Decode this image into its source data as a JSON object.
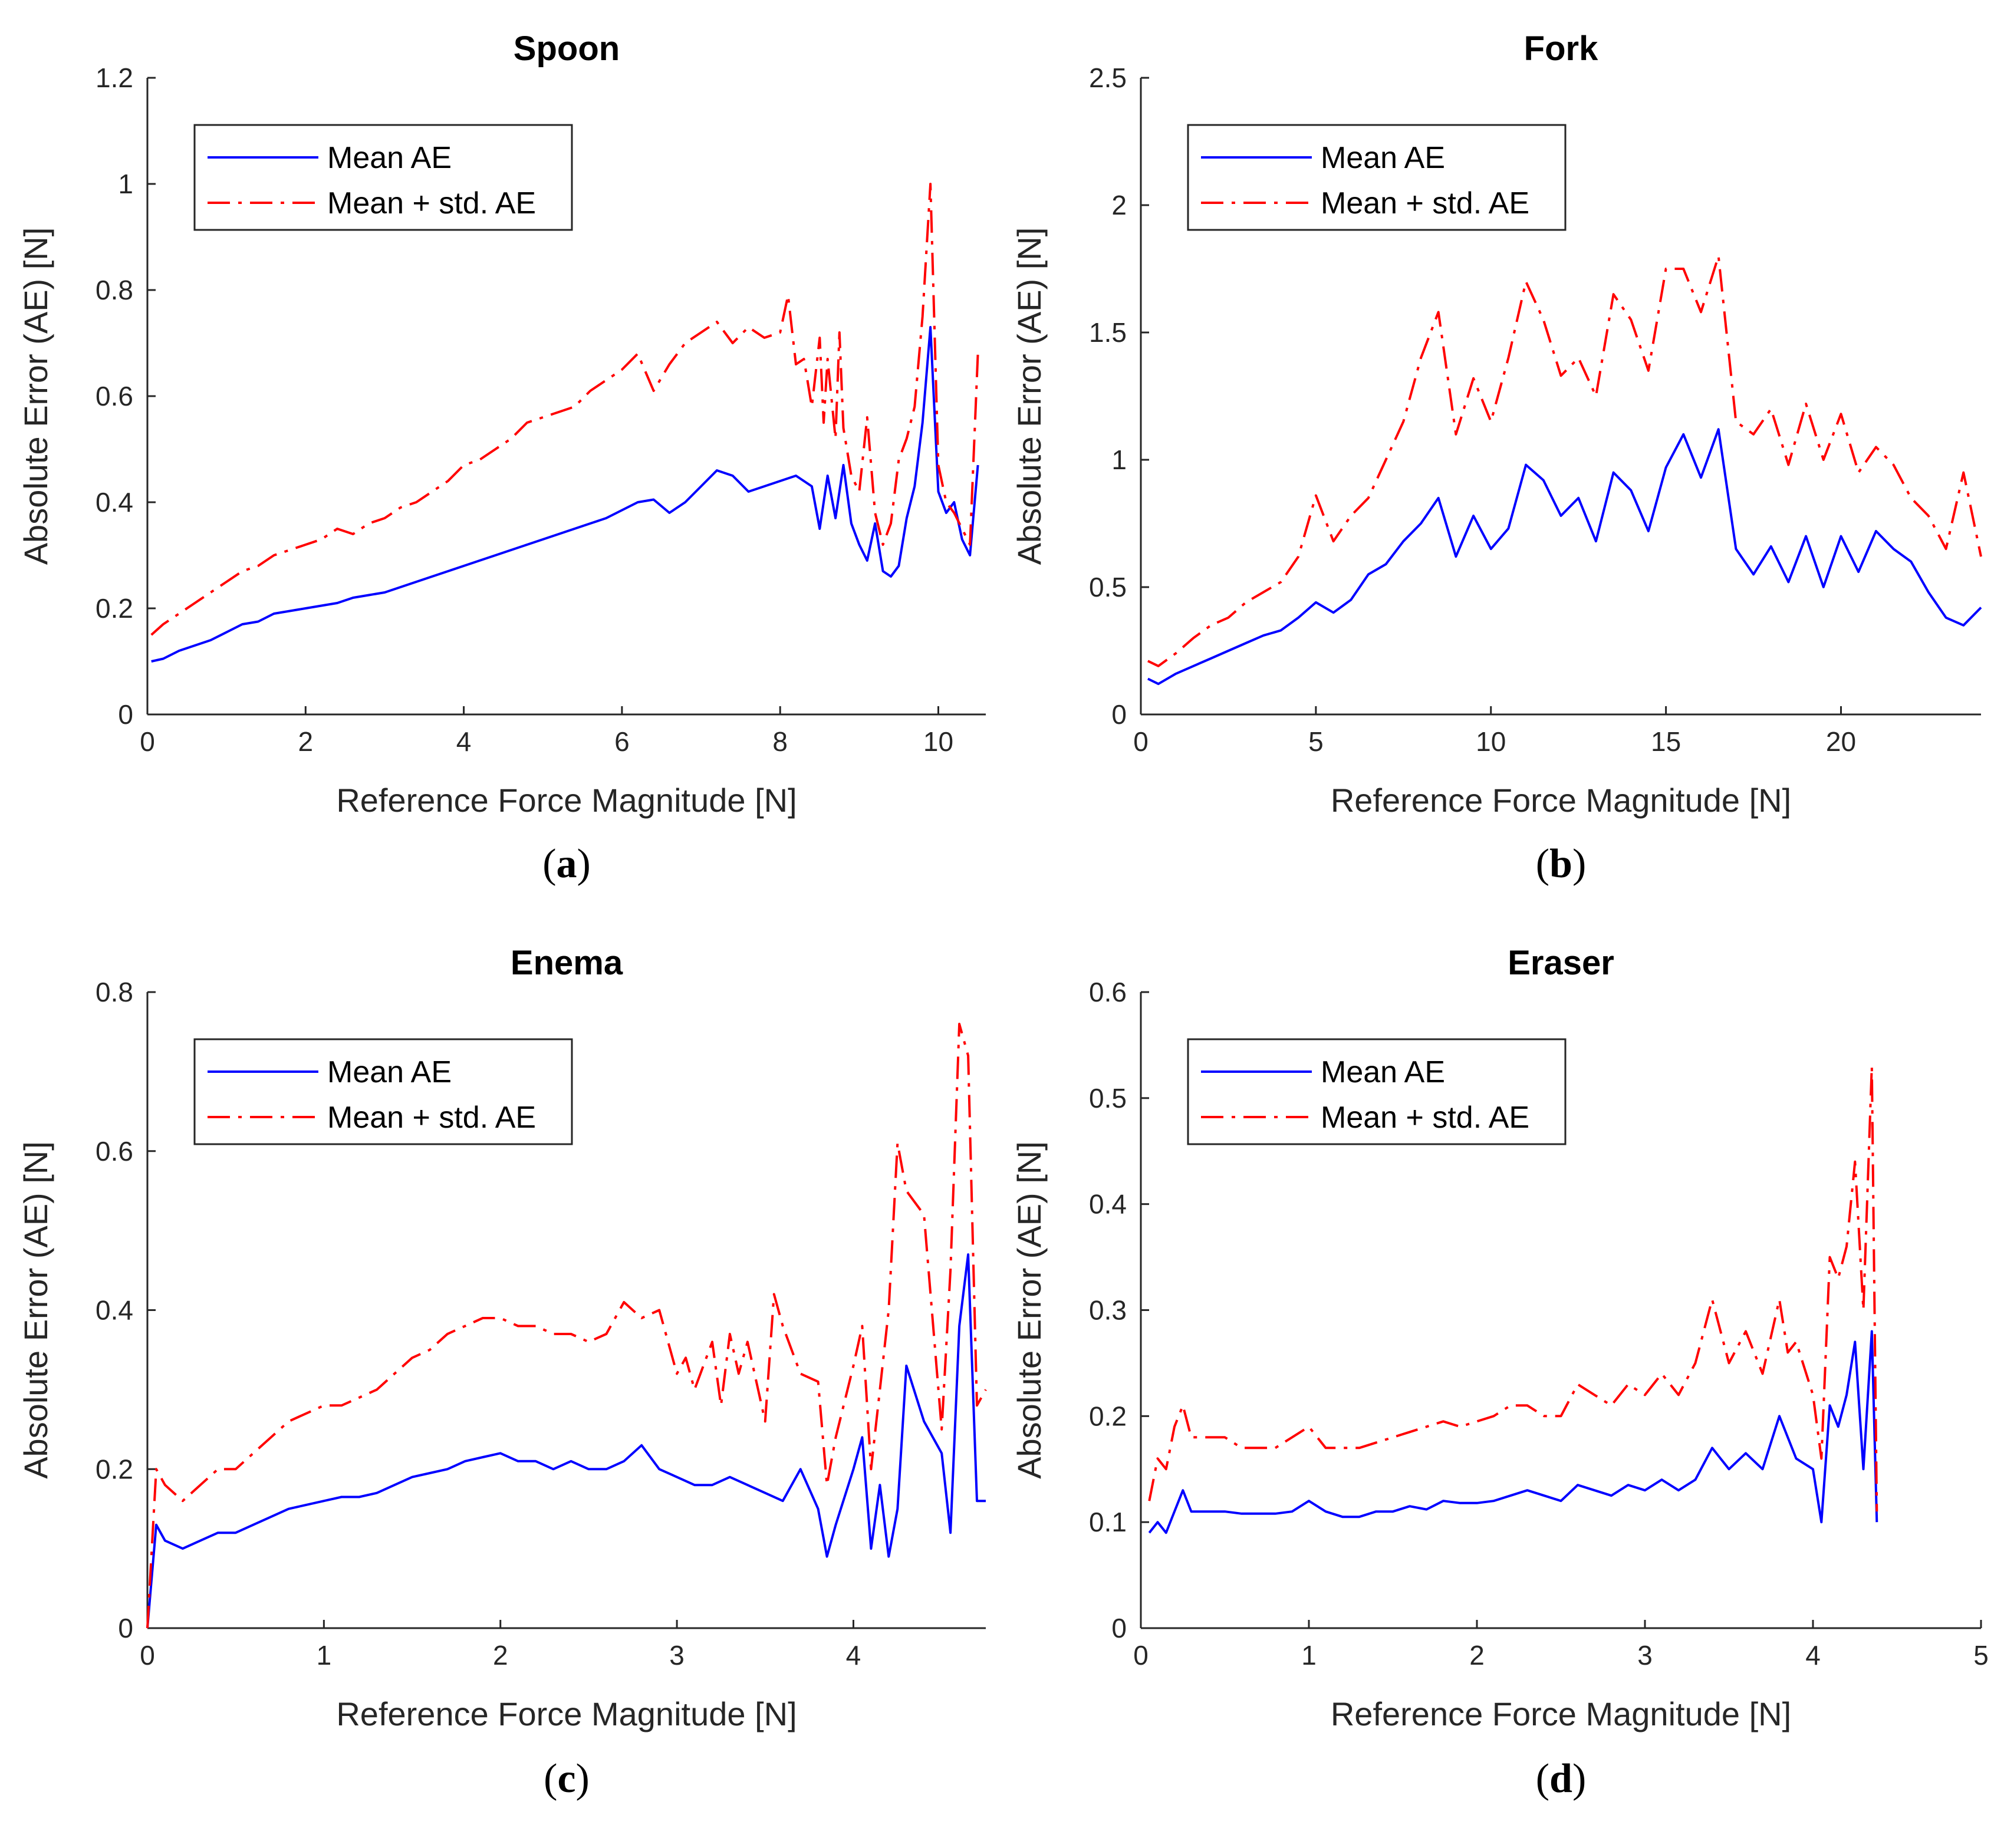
{
  "colors": {
    "mean": "#0000ff",
    "std": "#ff0000",
    "axis": "#262626"
  },
  "legend": {
    "mean_label": "Mean AE",
    "std_label": "Mean + std. AE"
  },
  "chart_data": [
    {
      "type": "line",
      "caption": "a",
      "title": "Spoon",
      "xlabel": "Reference Force Magnitude [N]",
      "ylabel": "Absolute Error (AE) [N]",
      "xlim": [
        0,
        10.6
      ],
      "ylim": [
        0,
        1.2
      ],
      "xticks": [
        0,
        2,
        4,
        6,
        8,
        10
      ],
      "xtick_labels": [
        "0",
        "2",
        "4",
        "6",
        "8",
        "10"
      ],
      "yticks": [
        0,
        0.2,
        0.4,
        0.6,
        0.8,
        1,
        1.2
      ],
      "ytick_labels": [
        "0",
        "0.2",
        "0.4",
        "0.6",
        "0.8",
        "1",
        "1.2"
      ],
      "legend_position": "top-left",
      "series": [
        {
          "name": "Mean AE",
          "x": [
            0.05,
            0.2,
            0.4,
            0.6,
            0.8,
            1.0,
            1.2,
            1.4,
            1.6,
            1.8,
            2.0,
            2.2,
            2.4,
            2.6,
            2.8,
            3.0,
            3.2,
            3.4,
            3.6,
            3.8,
            4.0,
            4.2,
            4.4,
            4.6,
            4.8,
            5.0,
            5.2,
            5.4,
            5.6,
            5.8,
            6.0,
            6.2,
            6.4,
            6.6,
            6.8,
            7.0,
            7.2,
            7.4,
            7.6,
            7.8,
            8.0,
            8.2,
            8.4,
            8.5,
            8.6,
            8.7,
            8.8,
            8.9,
            9.0,
            9.1,
            9.2,
            9.3,
            9.4,
            9.5,
            9.6,
            9.7,
            9.8,
            9.9,
            10.0,
            10.1,
            10.2,
            10.3,
            10.4,
            10.5
          ],
          "y": [
            0.1,
            0.105,
            0.12,
            0.13,
            0.14,
            0.155,
            0.17,
            0.175,
            0.19,
            0.195,
            0.2,
            0.205,
            0.21,
            0.22,
            0.225,
            0.23,
            0.24,
            0.25,
            0.26,
            0.27,
            0.28,
            0.29,
            0.3,
            0.31,
            0.32,
            0.33,
            0.34,
            0.35,
            0.36,
            0.37,
            0.385,
            0.4,
            0.405,
            0.38,
            0.4,
            0.43,
            0.46,
            0.45,
            0.42,
            0.43,
            0.44,
            0.45,
            0.43,
            0.35,
            0.45,
            0.37,
            0.47,
            0.36,
            0.32,
            0.29,
            0.36,
            0.27,
            0.26,
            0.28,
            0.37,
            0.43,
            0.55,
            0.73,
            0.42,
            0.38,
            0.4,
            0.33,
            0.3,
            0.47
          ]
        },
        {
          "name": "Mean + std. AE",
          "x": [
            0.05,
            0.2,
            0.4,
            0.6,
            0.8,
            1.0,
            1.2,
            1.4,
            1.6,
            1.8,
            2.0,
            2.2,
            2.4,
            2.6,
            2.8,
            3.0,
            3.2,
            3.4,
            3.6,
            3.8,
            4.0,
            4.2,
            4.4,
            4.6,
            4.8,
            5.0,
            5.2,
            5.4,
            5.6,
            5.8,
            6.0,
            6.2,
            6.4,
            6.6,
            6.8,
            7.0,
            7.2,
            7.4,
            7.6,
            7.8,
            8.0,
            8.1,
            8.2,
            8.3,
            8.4,
            8.5,
            8.55,
            8.6,
            8.7,
            8.75,
            8.8,
            8.9,
            9.0,
            9.1,
            9.2,
            9.3,
            9.4,
            9.5,
            9.6,
            9.7,
            9.8,
            9.9,
            10.0,
            10.1,
            10.2,
            10.3,
            10.4,
            10.5
          ],
          "y": [
            0.15,
            0.17,
            0.19,
            0.21,
            0.23,
            0.25,
            0.27,
            0.28,
            0.3,
            0.31,
            0.32,
            0.33,
            0.35,
            0.34,
            0.36,
            0.37,
            0.39,
            0.4,
            0.42,
            0.44,
            0.47,
            0.48,
            0.5,
            0.52,
            0.55,
            0.56,
            0.57,
            0.58,
            0.61,
            0.63,
            0.65,
            0.68,
            0.61,
            0.66,
            0.7,
            0.72,
            0.74,
            0.7,
            0.73,
            0.71,
            0.72,
            0.79,
            0.66,
            0.67,
            0.58,
            0.71,
            0.55,
            0.67,
            0.52,
            0.72,
            0.54,
            0.45,
            0.42,
            0.56,
            0.38,
            0.32,
            0.36,
            0.48,
            0.52,
            0.58,
            0.75,
            1.0,
            0.47,
            0.4,
            0.38,
            0.35,
            0.32,
            0.68
          ]
        }
      ]
    },
    {
      "type": "line",
      "caption": "b",
      "title": "Fork",
      "xlabel": "Reference Force Magnitude [N]",
      "ylabel": "Absolute Error (AE) [N]",
      "xlim": [
        0,
        24
      ],
      "ylim": [
        0,
        2.5
      ],
      "xticks": [
        0,
        5,
        10,
        15,
        20
      ],
      "xtick_labels": [
        "0",
        "5",
        "10",
        "15",
        "20"
      ],
      "yticks": [
        0,
        0.5,
        1,
        1.5,
        2,
        2.5
      ],
      "ytick_labels": [
        "0",
        "0.5",
        "1",
        "1.5",
        "2",
        "2.5"
      ],
      "legend_position": "top-left",
      "series": [
        {
          "name": "Mean AE",
          "x": [
            0.2,
            0.5,
            1,
            1.5,
            2,
            2.5,
            3,
            3.5,
            4,
            4.5,
            5,
            5.5,
            6,
            6.5,
            7,
            7.5,
            8,
            8.5,
            9,
            9.5,
            10,
            10.5,
            11,
            11.5,
            12,
            12.5,
            13,
            13.5,
            14,
            14.5,
            15,
            15.5,
            16,
            16.5,
            17,
            17.5,
            18,
            18.5,
            19,
            19.5,
            20,
            20.5,
            21,
            21.5,
            22,
            22.5,
            23,
            23.5,
            24
          ],
          "y": [
            0.14,
            0.12,
            0.16,
            0.19,
            0.22,
            0.25,
            0.28,
            0.31,
            0.33,
            0.38,
            0.44,
            0.4,
            0.45,
            0.55,
            0.59,
            0.68,
            0.75,
            0.85,
            0.62,
            0.78,
            0.65,
            0.73,
            0.98,
            0.92,
            0.78,
            0.85,
            0.68,
            0.95,
            0.88,
            0.72,
            0.97,
            1.1,
            0.93,
            1.12,
            0.65,
            0.55,
            0.66,
            0.52,
            0.7,
            0.5,
            0.7,
            0.56,
            0.72,
            0.65,
            0.6,
            0.48,
            0.38,
            0.35,
            0.42
          ]
        },
        {
          "name": "Mean + std. AE",
          "x": [
            0.2,
            0.5,
            1,
            1.5,
            2,
            2.5,
            3,
            3.5,
            4,
            4.5,
            5,
            5.5,
            6,
            6.5,
            7,
            7.5,
            8,
            8.5,
            9,
            9.5,
            10,
            10.5,
            11,
            11.5,
            12,
            12.5,
            13,
            13.5,
            14,
            14.5,
            15,
            15.5,
            16,
            16.5,
            17,
            17.5,
            18,
            18.5,
            19,
            19.5,
            20,
            20.5,
            21,
            21.5,
            22,
            22.5,
            23,
            23.5,
            24
          ],
          "y": [
            0.21,
            0.19,
            0.24,
            0.3,
            0.35,
            0.38,
            0.44,
            0.48,
            0.52,
            0.62,
            0.86,
            0.68,
            0.78,
            0.85,
            1.0,
            1.15,
            1.4,
            1.58,
            1.1,
            1.32,
            1.15,
            1.4,
            1.7,
            1.55,
            1.33,
            1.4,
            1.25,
            1.65,
            1.55,
            1.35,
            1.75,
            1.75,
            1.58,
            1.8,
            1.15,
            1.1,
            1.2,
            0.98,
            1.22,
            1.0,
            1.18,
            0.95,
            1.05,
            0.98,
            0.85,
            0.78,
            0.65,
            0.95,
            0.62
          ]
        }
      ]
    },
    {
      "type": "line",
      "caption": "c",
      "title": "Enema",
      "xlabel": "Reference Force Magnitude [N]",
      "ylabel": "Absolute Error (AE) [N]",
      "xlim": [
        0,
        4.75
      ],
      "ylim": [
        0,
        0.8
      ],
      "xticks": [
        0,
        1,
        2,
        3,
        4
      ],
      "xtick_labels": [
        "0",
        "1",
        "2",
        "3",
        "4"
      ],
      "yticks": [
        0,
        0.2,
        0.4,
        0.6,
        0.8
      ],
      "ytick_labels": [
        "0",
        "0.2",
        "0.4",
        "0.6",
        "0.8"
      ],
      "legend_position": "top-left",
      "series": [
        {
          "name": "Mean AE",
          "x": [
            0,
            0.05,
            0.1,
            0.2,
            0.3,
            0.4,
            0.5,
            0.6,
            0.7,
            0.8,
            0.9,
            1.0,
            1.1,
            1.2,
            1.3,
            1.4,
            1.5,
            1.6,
            1.7,
            1.8,
            1.9,
            2.0,
            2.1,
            2.2,
            2.3,
            2.4,
            2.5,
            2.6,
            2.7,
            2.8,
            2.9,
            3.0,
            3.1,
            3.2,
            3.3,
            3.4,
            3.5,
            3.6,
            3.7,
            3.8,
            3.85,
            3.9,
            4.0,
            4.05,
            4.1,
            4.15,
            4.2,
            4.25,
            4.3,
            4.4,
            4.5,
            4.55,
            4.6,
            4.65,
            4.7,
            4.75
          ],
          "y": [
            0,
            0.13,
            0.11,
            0.1,
            0.11,
            0.12,
            0.12,
            0.13,
            0.14,
            0.15,
            0.155,
            0.16,
            0.165,
            0.165,
            0.17,
            0.18,
            0.19,
            0.195,
            0.2,
            0.21,
            0.215,
            0.22,
            0.21,
            0.21,
            0.2,
            0.21,
            0.2,
            0.2,
            0.21,
            0.23,
            0.2,
            0.19,
            0.18,
            0.18,
            0.19,
            0.18,
            0.17,
            0.16,
            0.2,
            0.15,
            0.09,
            0.13,
            0.2,
            0.24,
            0.1,
            0.18,
            0.09,
            0.15,
            0.33,
            0.26,
            0.22,
            0.12,
            0.38,
            0.47,
            0.16,
            0.16
          ]
        },
        {
          "name": "Mean + std. AE",
          "x": [
            0,
            0.05,
            0.1,
            0.2,
            0.3,
            0.4,
            0.5,
            0.6,
            0.7,
            0.8,
            0.9,
            1.0,
            1.1,
            1.2,
            1.3,
            1.4,
            1.5,
            1.6,
            1.7,
            1.8,
            1.9,
            2.0,
            2.1,
            2.2,
            2.3,
            2.4,
            2.5,
            2.6,
            2.7,
            2.8,
            2.9,
            3.0,
            3.05,
            3.1,
            3.2,
            3.25,
            3.3,
            3.35,
            3.4,
            3.5,
            3.55,
            3.6,
            3.7,
            3.8,
            3.85,
            3.9,
            4.0,
            4.05,
            4.1,
            4.15,
            4.2,
            4.25,
            4.3,
            4.4,
            4.5,
            4.55,
            4.6,
            4.65,
            4.7,
            4.75
          ],
          "y": [
            0,
            0.2,
            0.18,
            0.16,
            0.18,
            0.2,
            0.2,
            0.22,
            0.24,
            0.26,
            0.27,
            0.28,
            0.28,
            0.29,
            0.3,
            0.32,
            0.34,
            0.35,
            0.37,
            0.38,
            0.39,
            0.39,
            0.38,
            0.38,
            0.37,
            0.37,
            0.36,
            0.37,
            0.41,
            0.39,
            0.4,
            0.32,
            0.34,
            0.3,
            0.36,
            0.28,
            0.37,
            0.32,
            0.36,
            0.26,
            0.42,
            0.38,
            0.32,
            0.31,
            0.18,
            0.24,
            0.33,
            0.38,
            0.2,
            0.3,
            0.4,
            0.61,
            0.55,
            0.52,
            0.25,
            0.45,
            0.76,
            0.72,
            0.28,
            0.3
          ]
        }
      ]
    },
    {
      "type": "line",
      "caption": "d",
      "title": "Eraser",
      "xlabel": "Reference Force Magnitude [N]",
      "ylabel": "Absolute Error (AE) [N]",
      "xlim": [
        0,
        5
      ],
      "ylim": [
        0,
        0.6
      ],
      "xticks": [
        0,
        1,
        2,
        3,
        4,
        5
      ],
      "xtick_labels": [
        "0",
        "1",
        "2",
        "3",
        "4",
        "5"
      ],
      "yticks": [
        0,
        0.1,
        0.2,
        0.3,
        0.4,
        0.5,
        0.6
      ],
      "ytick_labels": [
        "0",
        "0.1",
        "0.2",
        "0.3",
        "0.4",
        "0.5",
        "0.6"
      ],
      "legend_position": "top-left",
      "series": [
        {
          "name": "Mean AE",
          "x": [
            0.05,
            0.1,
            0.15,
            0.2,
            0.25,
            0.3,
            0.4,
            0.5,
            0.6,
            0.7,
            0.8,
            0.9,
            1.0,
            1.1,
            1.2,
            1.3,
            1.4,
            1.5,
            1.6,
            1.7,
            1.8,
            1.9,
            2.0,
            2.1,
            2.2,
            2.3,
            2.4,
            2.5,
            2.6,
            2.7,
            2.8,
            2.9,
            3.0,
            3.1,
            3.2,
            3.3,
            3.4,
            3.5,
            3.6,
            3.7,
            3.8,
            3.9,
            4.0,
            4.05,
            4.1,
            4.15,
            4.2,
            4.25,
            4.3,
            4.35,
            4.38
          ],
          "y": [
            0.09,
            0.1,
            0.09,
            0.11,
            0.13,
            0.11,
            0.11,
            0.11,
            0.108,
            0.108,
            0.108,
            0.11,
            0.12,
            0.11,
            0.105,
            0.105,
            0.11,
            0.11,
            0.115,
            0.112,
            0.12,
            0.118,
            0.118,
            0.12,
            0.125,
            0.13,
            0.125,
            0.12,
            0.135,
            0.13,
            0.125,
            0.135,
            0.13,
            0.14,
            0.13,
            0.14,
            0.17,
            0.15,
            0.165,
            0.15,
            0.2,
            0.16,
            0.15,
            0.1,
            0.21,
            0.19,
            0.22,
            0.27,
            0.15,
            0.28,
            0.1
          ]
        },
        {
          "name": "Mean + std. AE",
          "x": [
            0.05,
            0.1,
            0.15,
            0.2,
            0.25,
            0.3,
            0.4,
            0.5,
            0.6,
            0.7,
            0.8,
            0.9,
            1.0,
            1.1,
            1.2,
            1.3,
            1.4,
            1.5,
            1.6,
            1.7,
            1.8,
            1.9,
            2.0,
            2.1,
            2.2,
            2.3,
            2.4,
            2.5,
            2.6,
            2.7,
            2.8,
            2.9,
            3.0,
            3.1,
            3.2,
            3.3,
            3.4,
            3.5,
            3.6,
            3.7,
            3.8,
            3.85,
            3.9,
            4.0,
            4.05,
            4.1,
            4.15,
            4.2,
            4.25,
            4.3,
            4.35,
            4.38
          ],
          "y": [
            0.12,
            0.16,
            0.15,
            0.19,
            0.21,
            0.18,
            0.18,
            0.18,
            0.17,
            0.17,
            0.17,
            0.18,
            0.19,
            0.17,
            0.17,
            0.17,
            0.175,
            0.18,
            0.185,
            0.19,
            0.195,
            0.19,
            0.195,
            0.2,
            0.21,
            0.21,
            0.2,
            0.2,
            0.23,
            0.22,
            0.21,
            0.23,
            0.22,
            0.24,
            0.22,
            0.25,
            0.31,
            0.25,
            0.28,
            0.24,
            0.31,
            0.26,
            0.27,
            0.22,
            0.16,
            0.35,
            0.33,
            0.36,
            0.44,
            0.3,
            0.53,
            0.11
          ]
        }
      ]
    }
  ]
}
